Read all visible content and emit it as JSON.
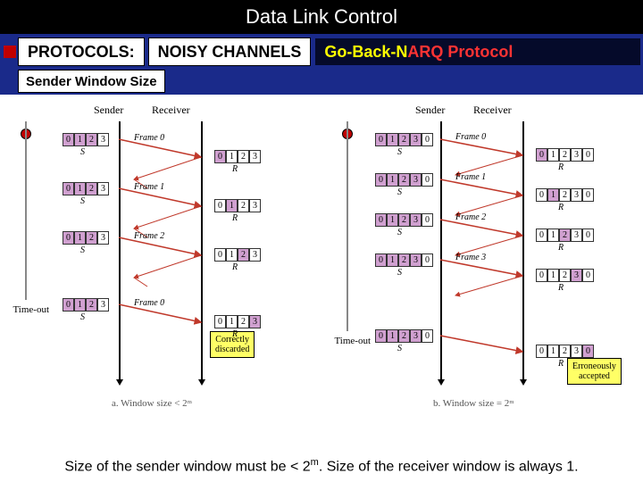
{
  "title": "Data Link Control",
  "header": {
    "protocols": "PROTOCOLS:",
    "channels": "NOISY CHANNELS",
    "protocol_name": "Go-Back-N ",
    "protocol_suffix": "ARQ Protocol"
  },
  "subheader": "Sender Window Size",
  "labels": {
    "sender": "Sender",
    "receiver": "Receiver",
    "timeout": "Time-out",
    "S": "S",
    "R": "R"
  },
  "frames_left": [
    "Frame 0",
    "Frame 1",
    "Frame 2",
    "Frame 0"
  ],
  "frames_right": [
    "Frame 0",
    "Frame 1",
    "Frame 2",
    "Frame 3"
  ],
  "boxes_left_sender": [
    {
      "cells": [
        "0",
        "1",
        "2",
        "3"
      ],
      "shaded": [
        0,
        1,
        2
      ]
    },
    {
      "cells": [
        "0",
        "1",
        "2",
        "3"
      ],
      "shaded": [
        0,
        1,
        2
      ]
    },
    {
      "cells": [
        "0",
        "1",
        "2",
        "3"
      ],
      "shaded": [
        0,
        1,
        2
      ]
    },
    {
      "cells": [
        "0",
        "1",
        "2",
        "3"
      ],
      "shaded": [
        0,
        1,
        2
      ]
    }
  ],
  "boxes_left_receiver": [
    {
      "cells": [
        "0",
        "1",
        "2",
        "3"
      ],
      "shaded": [
        0
      ]
    },
    {
      "cells": [
        "0",
        "1",
        "2",
        "3"
      ],
      "shaded": [
        1
      ]
    },
    {
      "cells": [
        "0",
        "1",
        "2",
        "3"
      ],
      "shaded": [
        2
      ]
    },
    {
      "cells": [
        "0",
        "1",
        "2",
        "3"
      ],
      "shaded": [
        3
      ]
    }
  ],
  "boxes_right_sender": [
    {
      "cells": [
        "0",
        "1",
        "2",
        "3",
        "0"
      ],
      "shaded": [
        0,
        1,
        2,
        3
      ]
    },
    {
      "cells": [
        "0",
        "1",
        "2",
        "3",
        "0"
      ],
      "shaded": [
        0,
        1,
        2,
        3
      ]
    },
    {
      "cells": [
        "0",
        "1",
        "2",
        "3",
        "0"
      ],
      "shaded": [
        0,
        1,
        2,
        3
      ]
    },
    {
      "cells": [
        "0",
        "1",
        "2",
        "3",
        "0"
      ],
      "shaded": [
        0,
        1,
        2,
        3
      ]
    },
    {
      "cells": [
        "0",
        "1",
        "2",
        "3",
        "0"
      ],
      "shaded": [
        0,
        1,
        2,
        3
      ]
    }
  ],
  "boxes_right_receiver": [
    {
      "cells": [
        "0",
        "1",
        "2",
        "3",
        "0"
      ],
      "shaded": [
        0
      ]
    },
    {
      "cells": [
        "0",
        "1",
        "2",
        "3",
        "0"
      ],
      "shaded": [
        1
      ]
    },
    {
      "cells": [
        "0",
        "1",
        "2",
        "3",
        "0"
      ],
      "shaded": [
        2
      ]
    },
    {
      "cells": [
        "0",
        "1",
        "2",
        "3",
        "0"
      ],
      "shaded": [
        3
      ]
    },
    {
      "cells": [
        "0",
        "1",
        "2",
        "3",
        "0"
      ],
      "shaded": [
        4
      ]
    }
  ],
  "note_left": "Correctly\ndiscarded",
  "note_right": "Erroneously\naccepted",
  "caption_left": "a. Window size < 2ᵐ",
  "caption_right": "b. Window size = 2ᵐ",
  "footer_pre": "Size of the sender window must be < 2",
  "footer_mid": ". Size of the receiver window is always 1.",
  "colors": {
    "frame_line": "#c0392b",
    "shaded_cell": "#d0a0d0",
    "note_bg": "#ffff66",
    "header_bg": "#1a2a8a",
    "title_bg": "#000000"
  }
}
